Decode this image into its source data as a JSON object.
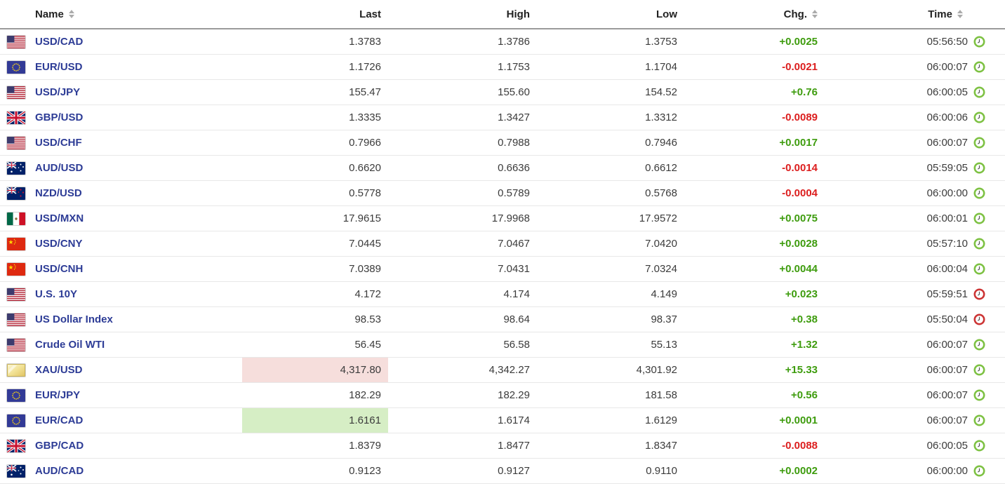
{
  "table": {
    "columns": [
      {
        "label": "Name",
        "sortable": true,
        "align": "left"
      },
      {
        "label": "Last",
        "sortable": false,
        "align": "right"
      },
      {
        "label": "High",
        "sortable": false,
        "align": "right"
      },
      {
        "label": "Low",
        "sortable": false,
        "align": "right"
      },
      {
        "label": "Chg.",
        "sortable": true,
        "align": "right"
      },
      {
        "label": "Time",
        "sortable": true,
        "align": "right"
      }
    ],
    "rows": [
      {
        "flag": "us",
        "name": "USD/CAD",
        "last": "1.3783",
        "high": "1.3786",
        "low": "1.3753",
        "chg": "+0.0025",
        "chg_dir": "up",
        "time": "05:56:50",
        "clock": "green",
        "last_bg": "none"
      },
      {
        "flag": "eu",
        "name": "EUR/USD",
        "last": "1.1726",
        "high": "1.1753",
        "low": "1.1704",
        "chg": "-0.0021",
        "chg_dir": "down",
        "time": "06:00:07",
        "clock": "green",
        "last_bg": "none"
      },
      {
        "flag": "us",
        "name": "USD/JPY",
        "last": "155.47",
        "high": "155.60",
        "low": "154.52",
        "chg": "+0.76",
        "chg_dir": "up",
        "time": "06:00:05",
        "clock": "green",
        "last_bg": "none"
      },
      {
        "flag": "gb",
        "name": "GBP/USD",
        "last": "1.3335",
        "high": "1.3427",
        "low": "1.3312",
        "chg": "-0.0089",
        "chg_dir": "down",
        "time": "06:00:06",
        "clock": "green",
        "last_bg": "none"
      },
      {
        "flag": "us",
        "name": "USD/CHF",
        "last": "0.7966",
        "high": "0.7988",
        "low": "0.7946",
        "chg": "+0.0017",
        "chg_dir": "up",
        "time": "06:00:07",
        "clock": "green",
        "last_bg": "none"
      },
      {
        "flag": "au",
        "name": "AUD/USD",
        "last": "0.6620",
        "high": "0.6636",
        "low": "0.6612",
        "chg": "-0.0014",
        "chg_dir": "down",
        "time": "05:59:05",
        "clock": "green",
        "last_bg": "none"
      },
      {
        "flag": "nz",
        "name": "NZD/USD",
        "last": "0.5778",
        "high": "0.5789",
        "low": "0.5768",
        "chg": "-0.0004",
        "chg_dir": "down",
        "time": "06:00:00",
        "clock": "green",
        "last_bg": "none"
      },
      {
        "flag": "mx",
        "name": "USD/MXN",
        "last": "17.9615",
        "high": "17.9968",
        "low": "17.9572",
        "chg": "+0.0075",
        "chg_dir": "up",
        "time": "06:00:01",
        "clock": "green",
        "last_bg": "none"
      },
      {
        "flag": "cn",
        "name": "USD/CNY",
        "last": "7.0445",
        "high": "7.0467",
        "low": "7.0420",
        "chg": "+0.0028",
        "chg_dir": "up",
        "time": "05:57:10",
        "clock": "green",
        "last_bg": "none"
      },
      {
        "flag": "cn",
        "name": "USD/CNH",
        "last": "7.0389",
        "high": "7.0431",
        "low": "7.0324",
        "chg": "+0.0044",
        "chg_dir": "up",
        "time": "06:00:04",
        "clock": "green",
        "last_bg": "none"
      },
      {
        "flag": "us",
        "name": "U.S. 10Y",
        "last": "4.172",
        "high": "4.174",
        "low": "4.149",
        "chg": "+0.023",
        "chg_dir": "up",
        "time": "05:59:51",
        "clock": "red",
        "last_bg": "none"
      },
      {
        "flag": "us",
        "name": "US Dollar Index",
        "last": "98.53",
        "high": "98.64",
        "low": "98.37",
        "chg": "+0.38",
        "chg_dir": "up",
        "time": "05:50:04",
        "clock": "red",
        "last_bg": "none"
      },
      {
        "flag": "us",
        "name": "Crude Oil WTI",
        "last": "56.45",
        "high": "56.58",
        "low": "55.13",
        "chg": "+1.32",
        "chg_dir": "up",
        "time": "06:00:07",
        "clock": "green",
        "last_bg": "none"
      },
      {
        "flag": "gold",
        "name": "XAU/USD",
        "last": "4,317.80",
        "high": "4,342.27",
        "low": "4,301.92",
        "chg": "+15.33",
        "chg_dir": "up",
        "time": "06:00:07",
        "clock": "green",
        "last_bg": "down"
      },
      {
        "flag": "eu",
        "name": "EUR/JPY",
        "last": "182.29",
        "high": "182.29",
        "low": "181.58",
        "chg": "+0.56",
        "chg_dir": "up",
        "time": "06:00:07",
        "clock": "green",
        "last_bg": "none"
      },
      {
        "flag": "eu",
        "name": "EUR/CAD",
        "last": "1.6161",
        "high": "1.6174",
        "low": "1.6129",
        "chg": "+0.0001",
        "chg_dir": "up",
        "time": "06:00:07",
        "clock": "green",
        "last_bg": "up"
      },
      {
        "flag": "gb",
        "name": "GBP/CAD",
        "last": "1.8379",
        "high": "1.8477",
        "low": "1.8347",
        "chg": "-0.0088",
        "chg_dir": "down",
        "time": "06:00:05",
        "clock": "green",
        "last_bg": "none"
      },
      {
        "flag": "au",
        "name": "AUD/CAD",
        "last": "0.9123",
        "high": "0.9127",
        "low": "0.9110",
        "chg": "+0.0002",
        "chg_dir": "up",
        "time": "06:00:00",
        "clock": "green",
        "last_bg": "none"
      }
    ]
  },
  "icons": {
    "sort-icon": "up-down-triangles",
    "clock-icon": "quote-update-clock",
    "flag-icons": [
      "us",
      "eu",
      "gb",
      "au",
      "nz",
      "mx",
      "cn",
      "gold"
    ]
  },
  "colors": {
    "positive": "#3e9c0e",
    "negative": "#dc1e1e",
    "link_blue": "#2d3c96",
    "header_text": "#222222",
    "clock_green": "#7dc142",
    "clock_red": "#cc3333",
    "highlight_up_bg": "#d6eec5",
    "highlight_down_bg": "#f6dedc"
  }
}
